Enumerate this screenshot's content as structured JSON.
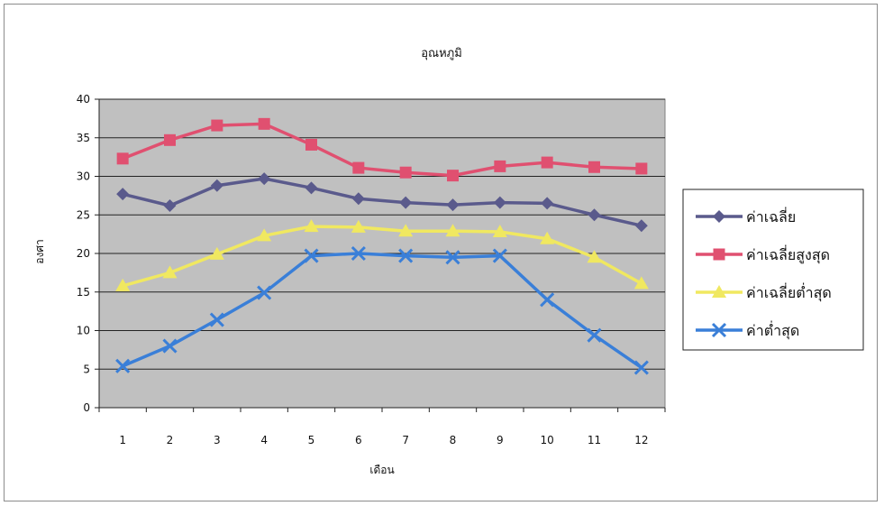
{
  "chart_data": {
    "type": "line",
    "title": "อุณหภูมิ",
    "xlabel": "เดือน",
    "ylabel": "องศา",
    "categories": [
      "1",
      "2",
      "3",
      "4",
      "5",
      "6",
      "7",
      "8",
      "9",
      "10",
      "11",
      "12"
    ],
    "ylim": [
      0,
      40
    ],
    "yticks": [
      0,
      5,
      10,
      15,
      20,
      25,
      30,
      35,
      40
    ],
    "grid": true,
    "legend_position": "right",
    "plot_background": "#c0c0c0",
    "series": [
      {
        "name": "ค่าเฉลี่ย",
        "color": "#5a5a8c",
        "marker": "diamond",
        "values": [
          27.7,
          26.2,
          28.8,
          29.7,
          28.5,
          27.1,
          26.6,
          26.3,
          26.6,
          26.5,
          25.0,
          23.6
        ]
      },
      {
        "name": "ค่าเฉลี่ยสูงสุด",
        "color": "#e05070",
        "marker": "square",
        "values": [
          32.3,
          34.7,
          36.6,
          36.8,
          34.1,
          31.1,
          30.5,
          30.1,
          31.3,
          31.8,
          31.2,
          31.0
        ]
      },
      {
        "name": "ค่าเฉลี่ยต่ำสุด",
        "color": "#f0e860",
        "marker": "triangle",
        "values": [
          15.8,
          17.5,
          19.9,
          22.3,
          23.5,
          23.4,
          22.9,
          22.9,
          22.8,
          21.9,
          19.5,
          16.1
        ]
      },
      {
        "name": "ค่าต่ำสุด",
        "color": "#3a7fd8",
        "marker": "x",
        "values": [
          5.4,
          8.0,
          11.4,
          14.9,
          19.7,
          20.0,
          19.7,
          19.5,
          19.7,
          14.0,
          9.4,
          5.2
        ]
      }
    ]
  }
}
